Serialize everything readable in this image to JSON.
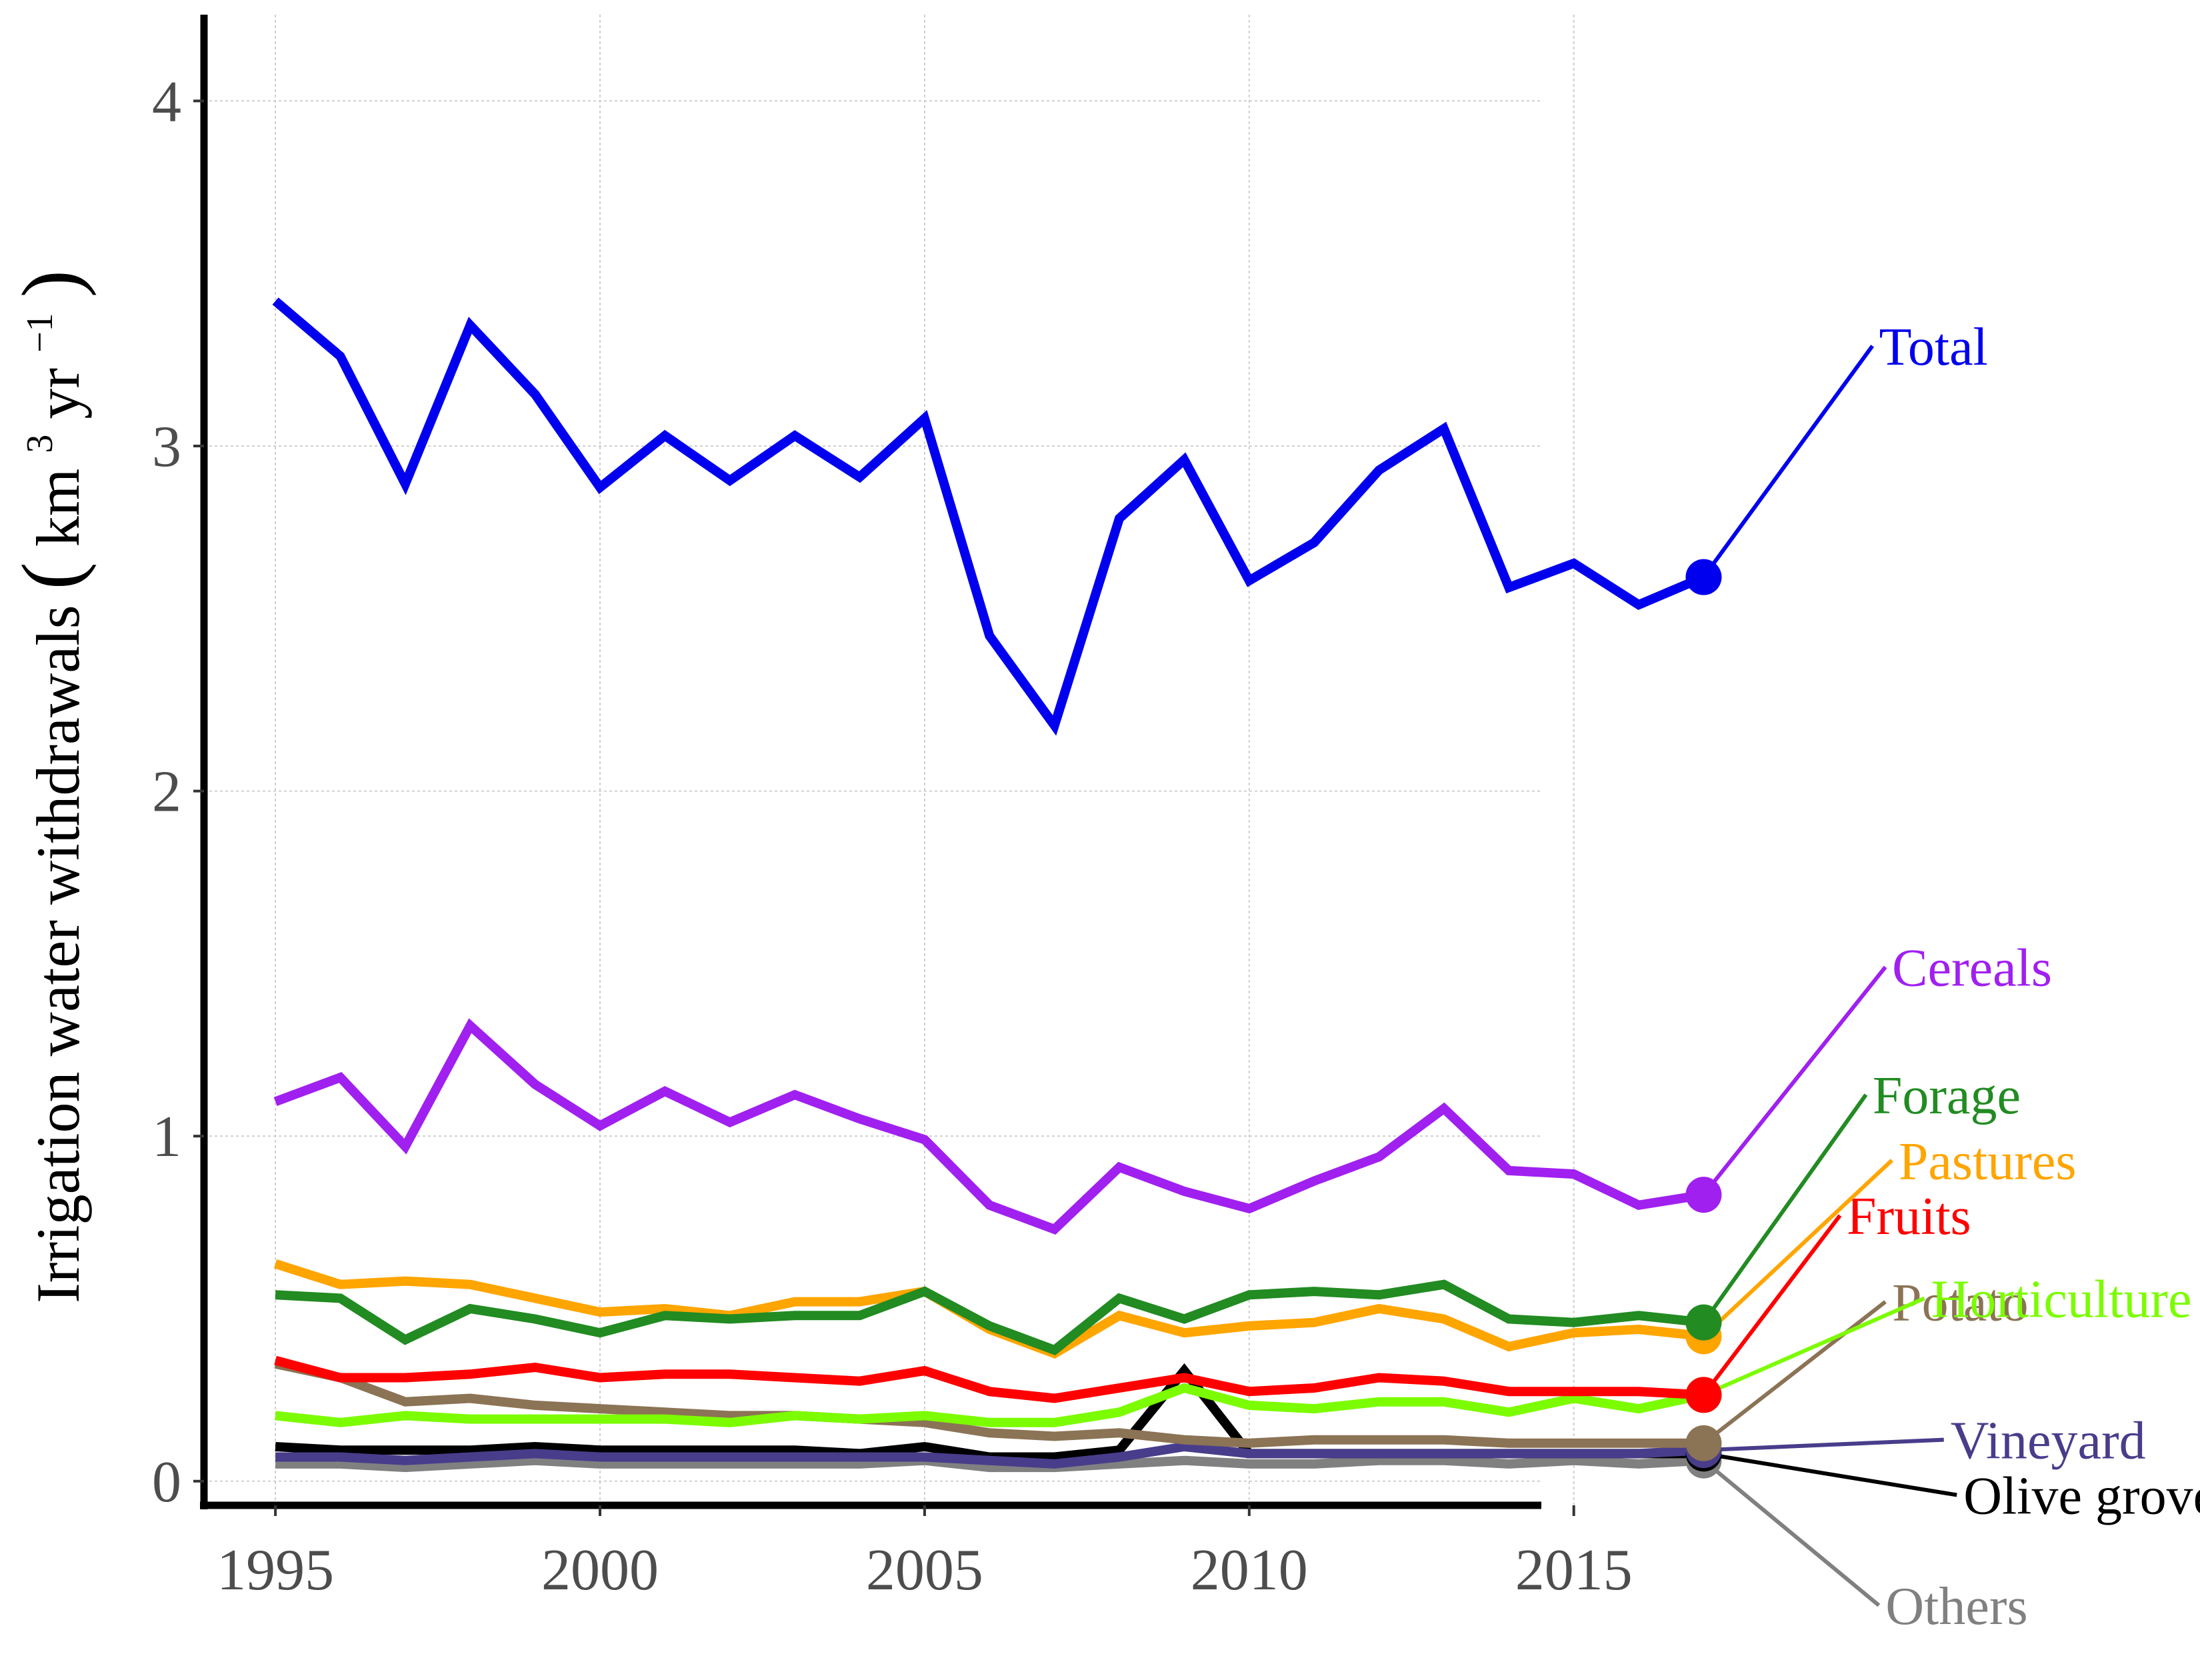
{
  "chart_data": {
    "type": "line",
    "ylabel": {
      "main": "Irrigation water withdrawals ",
      "open": "(",
      "unit_km": "km",
      "sup_3": "3",
      "unit_yr": " yr",
      "sup_m1": "−1",
      "close": ")"
    },
    "xlim": [
      1993.9,
      2022.9
    ],
    "ylim": [
      -0.07,
      4.25
    ],
    "x_ticks": [
      {
        "value": 1995,
        "label": "1995"
      },
      {
        "value": 2000,
        "label": "2000"
      },
      {
        "value": 2005,
        "label": "2005"
      },
      {
        "value": 2010,
        "label": "2010"
      },
      {
        "value": 2015,
        "label": "2015"
      }
    ],
    "y_ticks": [
      {
        "value": 0,
        "label": "0"
      },
      {
        "value": 1,
        "label": "1"
      },
      {
        "value": 2,
        "label": "2"
      },
      {
        "value": 3,
        "label": "3"
      },
      {
        "value": 4,
        "label": "4"
      }
    ],
    "grid": true,
    "x": [
      1995,
      1996,
      1997,
      1998,
      1999,
      2000,
      2001,
      2002,
      2003,
      2004,
      2005,
      2006,
      2007,
      2008,
      2009,
      2010,
      2011,
      2012,
      2013,
      2014,
      2015,
      2016,
      2017
    ],
    "series": [
      {
        "name": "Others",
        "color": "#808080",
        "label_x": 2019.7,
        "label_y": -0.36,
        "values": [
          0.05,
          0.05,
          0.04,
          0.05,
          0.06,
          0.05,
          0.05,
          0.05,
          0.05,
          0.05,
          0.06,
          0.04,
          0.04,
          0.05,
          0.06,
          0.05,
          0.05,
          0.06,
          0.06,
          0.05,
          0.06,
          0.05,
          0.06
        ]
      },
      {
        "name": "Olive grove",
        "color": "#000000",
        "label_x": 2020.9,
        "label_y": -0.04,
        "values": [
          0.1,
          0.09,
          0.09,
          0.09,
          0.1,
          0.09,
          0.09,
          0.09,
          0.09,
          0.08,
          0.1,
          0.07,
          0.07,
          0.09,
          0.32,
          0.08,
          0.08,
          0.08,
          0.08,
          0.08,
          0.08,
          0.08,
          0.08
        ]
      },
      {
        "name": "Vineyard",
        "color": "#483D8B",
        "label_x": 2020.7,
        "label_y": 0.12,
        "values": [
          0.07,
          0.07,
          0.06,
          0.07,
          0.08,
          0.07,
          0.07,
          0.07,
          0.07,
          0.07,
          0.07,
          0.06,
          0.05,
          0.07,
          0.1,
          0.08,
          0.08,
          0.08,
          0.08,
          0.08,
          0.08,
          0.08,
          0.09
        ]
      },
      {
        "name": "Potato",
        "color": "#8B7355",
        "label_x": 2019.8,
        "label_y": 0.52,
        "values": [
          0.34,
          0.3,
          0.23,
          0.24,
          0.22,
          0.21,
          0.2,
          0.19,
          0.19,
          0.18,
          0.17,
          0.14,
          0.13,
          0.14,
          0.12,
          0.11,
          0.12,
          0.12,
          0.12,
          0.11,
          0.11,
          0.11,
          0.11
        ]
      },
      {
        "name": "Horticulture",
        "color": "#7CFC00",
        "label_x": 2020.4,
        "label_y": 0.53,
        "values": [
          0.19,
          0.17,
          0.19,
          0.18,
          0.18,
          0.18,
          0.18,
          0.17,
          0.19,
          0.18,
          0.19,
          0.17,
          0.17,
          0.2,
          0.27,
          0.22,
          0.21,
          0.23,
          0.23,
          0.2,
          0.24,
          0.21,
          0.25
        ]
      },
      {
        "name": "Fruits",
        "color": "#FF0000",
        "label_x": 2019.1,
        "label_y": 0.77,
        "values": [
          0.35,
          0.3,
          0.3,
          0.31,
          0.33,
          0.3,
          0.31,
          0.31,
          0.3,
          0.29,
          0.32,
          0.26,
          0.24,
          0.27,
          0.3,
          0.26,
          0.27,
          0.3,
          0.29,
          0.26,
          0.26,
          0.26,
          0.25
        ]
      },
      {
        "name": "Pastures",
        "color": "#FFA500",
        "label_x": 2019.9,
        "label_y": 0.93,
        "values": [
          0.63,
          0.57,
          0.58,
          0.57,
          0.53,
          0.49,
          0.5,
          0.48,
          0.52,
          0.52,
          0.55,
          0.44,
          0.37,
          0.48,
          0.43,
          0.45,
          0.46,
          0.5,
          0.47,
          0.39,
          0.43,
          0.44,
          0.42
        ]
      },
      {
        "name": "Forage",
        "color": "#228B22",
        "label_x": 2019.5,
        "label_y": 1.12,
        "values": [
          0.54,
          0.53,
          0.41,
          0.5,
          0.47,
          0.43,
          0.48,
          0.47,
          0.48,
          0.48,
          0.55,
          0.45,
          0.38,
          0.53,
          0.47,
          0.54,
          0.55,
          0.54,
          0.57,
          0.47,
          0.46,
          0.48,
          0.46
        ]
      },
      {
        "name": "Cereals",
        "color": "#A020F0",
        "label_x": 2019.8,
        "label_y": 1.49,
        "values": [
          1.1,
          1.17,
          0.97,
          1.32,
          1.15,
          1.03,
          1.13,
          1.04,
          1.12,
          1.05,
          0.99,
          0.8,
          0.73,
          0.91,
          0.84,
          0.79,
          0.87,
          0.94,
          1.08,
          0.9,
          0.89,
          0.8,
          0.83
        ]
      },
      {
        "name": "Total",
        "color": "#0000EE",
        "label_x": 2019.6,
        "label_y": 3.29,
        "values": [
          3.42,
          3.26,
          2.89,
          3.35,
          3.15,
          2.88,
          3.03,
          2.9,
          3.03,
          2.91,
          3.08,
          2.45,
          2.19,
          2.79,
          2.96,
          2.61,
          2.72,
          2.93,
          3.05,
          2.59,
          2.66,
          2.54,
          2.62
        ]
      }
    ]
  }
}
